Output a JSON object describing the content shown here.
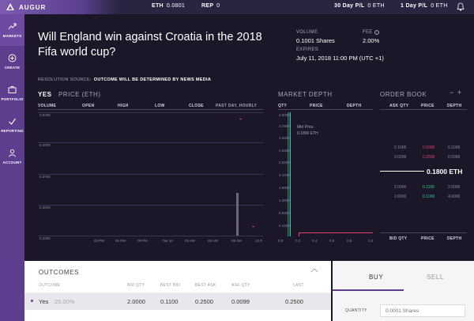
{
  "topbar": {
    "brand": "AUGUR",
    "eth_label": "ETH",
    "eth_value": "0.0801",
    "rep_label": "REP",
    "rep_value": "0",
    "pl30_label": "30 Day P/L",
    "pl30_value": "0 ETH",
    "pl1_label": "1 Day P/L",
    "pl1_value": "0 ETH"
  },
  "sidebar": {
    "items": [
      {
        "label": "MARKETS",
        "icon": "chart-trend-icon"
      },
      {
        "label": "CREATE",
        "icon": "plus-circle-icon"
      },
      {
        "label": "PORTFOLIO",
        "icon": "briefcase-icon"
      },
      {
        "label": "REPORTING",
        "icon": "check-icon"
      },
      {
        "label": "ACCOUNT",
        "icon": "person-icon"
      }
    ]
  },
  "market": {
    "title": "Will England win against Croatia in the 2018 Fifa world cup?",
    "resolution_label": "RESOLUTION SOURCE:",
    "resolution_value": "OUTCOME WILL BE DETERMINED BY NEWS MEDIA",
    "volume_label": "VOLUME",
    "volume_value": "0.1001 Shares",
    "fee_label": "FEE",
    "fee_value": "2.00%",
    "expires_label": "EXPIRES",
    "expires_value": "July 11, 2018 11:00 PM (UTC +1)"
  },
  "price_panel": {
    "title_yes": "YES",
    "title_price": "PRICE (ETH)",
    "cols": [
      "VOLUME",
      "OPEN",
      "HIGH",
      "LOW",
      "CLOSE",
      "PAST DAY, HOURLY"
    ],
    "yticks": [
      "0.5250",
      "0.4500",
      "0.3750",
      "0.3000",
      "0.2250"
    ],
    "xticks": [
      "03 PM",
      "06 PM",
      "09 PM",
      "Tue 10",
      "03 AM",
      "06 AM",
      "09 AM",
      "12 P"
    ]
  },
  "depth_panel": {
    "title": "MARKET DEPTH",
    "cols": [
      "QTY",
      "PRICE",
      "DEPTH"
    ],
    "yticks": [
      "4.2000",
      "3.7800",
      "3.3600",
      "2.9400",
      "2.5200",
      "2.1000",
      "1.6800",
      "1.2600",
      "0.8400",
      "0.4200"
    ],
    "xticks": [
      "0.0",
      "0.2",
      "0.4",
      "0.6",
      "0.8",
      "1.0"
    ],
    "mid_label": "Mid Price",
    "mid_value": "0.1800 ETH"
  },
  "order_book": {
    "title": "ORDER BOOK",
    "minus": "−",
    "plus": "+",
    "cols": [
      "ASK QTY",
      "PRICE",
      "DEPTH"
    ],
    "asks": [
      {
        "qty": "0.1000",
        "price": "0.5000",
        "depth": "0.1099"
      },
      {
        "qty": "0.0099",
        "price": "0.2500",
        "depth": "0.0099"
      }
    ],
    "mid_price": "0.1800 ETH",
    "bids": [
      {
        "qty": "2.0000",
        "price": "0.1100",
        "depth": "2.0000"
      },
      {
        "qty": "2.0000",
        "price": "0.1000",
        "depth": "4.0000"
      }
    ],
    "footer_cols": [
      "BID QTY",
      "PRICE",
      "DEPTH"
    ]
  },
  "outcomes": {
    "title": "OUTCOMES",
    "cols": [
      "OUTCOME",
      "BID QTY",
      "BEST BID",
      "BEST ASK",
      "ASK QTY",
      "LAST"
    ],
    "rows": [
      {
        "name": "Yes",
        "pct": "25.00%",
        "bid_qty": "2.0000",
        "best_bid": "0.1100",
        "best_ask": "0.2500",
        "ask_qty": "0.0099",
        "last": "0.2500"
      }
    ]
  },
  "trade": {
    "buy_label": "BUY",
    "sell_label": "SELL",
    "quantity_label": "QUANTITY",
    "quantity_placeholder": "0.0001 Shares"
  },
  "colors": {
    "background": "#1b1729",
    "sidebar": "#5c3d8e",
    "ask": "#e0436f",
    "bid": "#2ec98a"
  }
}
